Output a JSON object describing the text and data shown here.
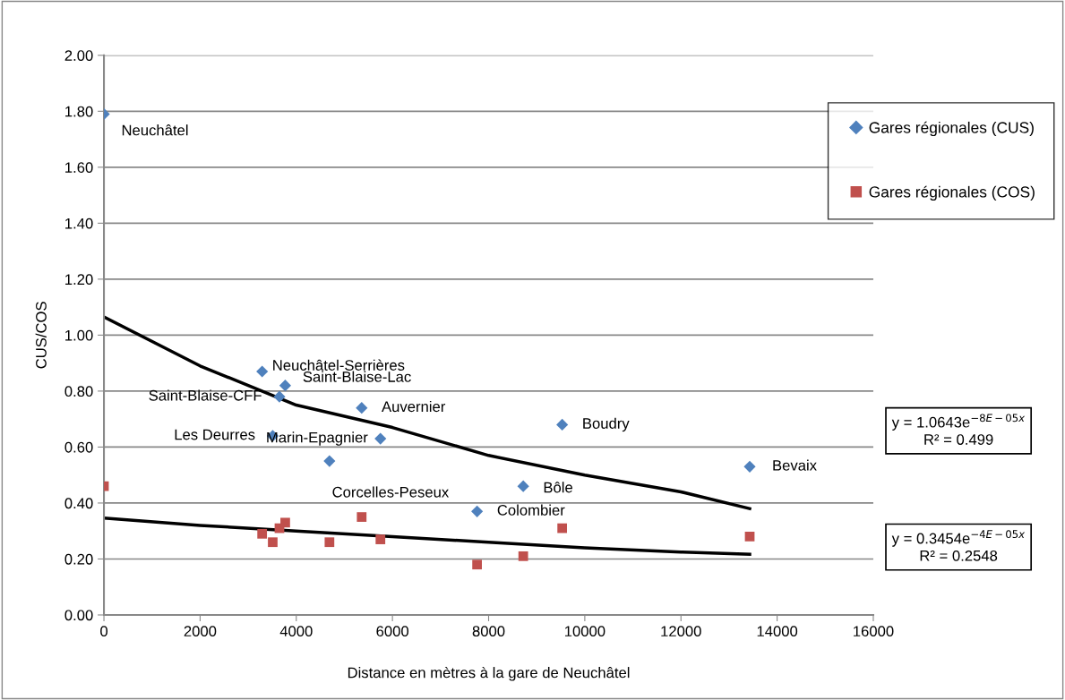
{
  "chart_data": {
    "type": "scatter",
    "xlabel": "Distance en mètres à la gare de Neuchâtel",
    "ylabel": "CUS/COS",
    "xlim": [
      0,
      16000
    ],
    "xticks": [
      0,
      2000,
      4000,
      6000,
      8000,
      10000,
      12000,
      14000,
      16000
    ],
    "ylim": [
      0,
      2
    ],
    "yticks": [
      {
        "value": 0,
        "label": "0.00"
      },
      {
        "value": 0.2,
        "label": "0.20"
      },
      {
        "value": 0.4,
        "label": "0.40"
      },
      {
        "value": 0.6,
        "label": "0.60"
      },
      {
        "value": 0.8,
        "label": "0.80"
      },
      {
        "value": 1.0,
        "label": "1.00"
      },
      {
        "value": 1.2,
        "label": "1.20"
      },
      {
        "value": 1.4,
        "label": "1.40"
      },
      {
        "value": 1.6,
        "label": "1.60"
      },
      {
        "value": 1.8,
        "label": "1.80"
      },
      {
        "value": 2.0,
        "label": "2.00"
      }
    ],
    "grid": "y",
    "legend": "right",
    "series": [
      {
        "name": "Gares régionales (CUS)",
        "color": "#4f81bd",
        "marker": "diamond",
        "x": [
          0,
          3290,
          3770,
          3650,
          3510,
          5360,
          5750,
          4690,
          7760,
          8720,
          9530,
          13430
        ],
        "values": [
          1.79,
          0.87,
          0.82,
          0.78,
          0.64,
          0.74,
          0.63,
          0.55,
          0.37,
          0.46,
          0.68,
          0.53
        ],
        "value_labels": [
          "Neuchâtel",
          "Neuchâtel-Serrières",
          "Saint-Blaise-Lac",
          "Saint-Blaise-CFF",
          "Les Deurres",
          "Auvernier",
          "Marin-Epagnier",
          "Corcelles-Peseux",
          "Colombier",
          "Bôle",
          "Boudry",
          "Bevaix"
        ]
      },
      {
        "name": "Gares régionales (COS)",
        "color": "#c0504d",
        "marker": "square",
        "x": [
          0,
          3290,
          3770,
          3650,
          3510,
          5360,
          5750,
          4690,
          7760,
          8720,
          9530,
          13430
        ],
        "values": [
          0.46,
          0.29,
          0.33,
          0.31,
          0.26,
          0.35,
          0.27,
          0.26,
          0.18,
          0.21,
          0.31,
          0.28
        ]
      },
      {
        "type": "line",
        "color": "#000000",
        "marker": "none",
        "x": [
          0,
          2000,
          4000,
          6000,
          8000,
          10000,
          12000,
          13430
        ],
        "values": [
          1.065,
          0.89,
          0.75,
          0.67,
          0.57,
          0.5,
          0.44,
          0.38
        ]
      },
      {
        "type": "line",
        "color": "#000000",
        "marker": "none",
        "x": [
          0,
          2000,
          4000,
          6000,
          8000,
          10000,
          12000,
          13430
        ],
        "values": [
          0.346,
          0.32,
          0.3,
          0.28,
          0.26,
          0.24,
          0.225,
          0.217
        ]
      }
    ],
    "annotations": [
      "y = 1.0643e$^{−8E−05x}$\nR² = 0.499",
      "y = 0.3454e$^{−4E−05x}$\nR² = 0.2548"
    ]
  }
}
